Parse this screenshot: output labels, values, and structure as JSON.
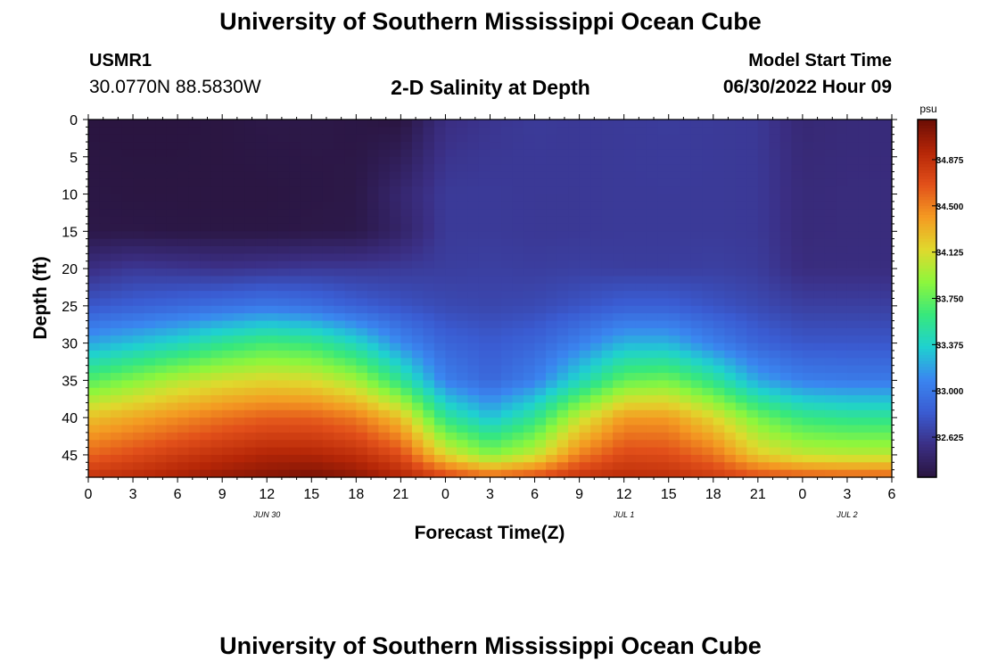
{
  "header": {
    "title": "University of Southern Mississippi Ocean Cube",
    "station_id": "USMR1",
    "station_coords": "30.0770N  88.5830W",
    "subtitle": "2-D Salinity at Depth",
    "start_label": "Model Start Time",
    "start_value": "06/30/2022 Hour 09"
  },
  "footer": {
    "title": "University of Southern Mississippi Ocean Cube"
  },
  "chart_data": {
    "type": "heatmap",
    "title": "2-D Salinity at Depth",
    "xlabel": "Forecast Time(Z)",
    "ylabel": "Depth (ft)",
    "x_ticks": [
      "0",
      "3",
      "6",
      "9",
      "12",
      "15",
      "18",
      "21",
      "0",
      "3",
      "6",
      "9",
      "12",
      "15",
      "18",
      "21",
      "0",
      "3",
      "6"
    ],
    "x_tick_hours": [
      0,
      3,
      6,
      9,
      12,
      15,
      18,
      21,
      24,
      27,
      30,
      33,
      36,
      39,
      42,
      45,
      48,
      51,
      54
    ],
    "date_labels": [
      {
        "label": "JUN 30",
        "hour": 12
      },
      {
        "label": "JUL 1",
        "hour": 36
      },
      {
        "label": "JUL 2",
        "hour": 51
      }
    ],
    "xlim": [
      0,
      54
    ],
    "y_ticks": [
      0,
      5,
      10,
      15,
      20,
      25,
      30,
      35,
      40,
      45
    ],
    "ylim": [
      0,
      48
    ],
    "colorbar": {
      "unit": "psu",
      "ticks": [
        "34.875",
        "34.500",
        "34.125",
        "33.750",
        "33.375",
        "33.000",
        "32.625"
      ],
      "tick_values": [
        34.875,
        34.5,
        34.125,
        33.75,
        33.375,
        33.0,
        32.625
      ],
      "range": [
        32.3,
        35.2
      ],
      "colors": [
        "#2a1540",
        "#3b2f85",
        "#3a5cd2",
        "#3a86f0",
        "#1fd1d0",
        "#37e87c",
        "#8ef63c",
        "#e0d92d",
        "#f49a22",
        "#e2501a",
        "#b52607",
        "#6a0d05"
      ]
    },
    "series": [
      {
        "depth_ft": 0,
        "salinity": [
          32.3,
          32.3,
          32.3,
          32.31,
          32.33,
          32.33,
          32.32,
          32.3,
          32.55,
          32.6,
          32.63,
          32.62,
          32.63,
          32.64,
          32.63,
          32.62,
          32.5,
          32.52,
          32.52
        ]
      },
      {
        "depth_ft": 10,
        "salinity": [
          32.32,
          32.31,
          32.31,
          32.31,
          32.31,
          32.32,
          32.33,
          32.48,
          32.63,
          32.63,
          32.62,
          32.62,
          32.63,
          32.63,
          32.63,
          32.62,
          32.52,
          32.53,
          32.53
        ]
      },
      {
        "depth_ft": 15,
        "salinity": [
          32.33,
          32.33,
          32.32,
          32.32,
          32.32,
          32.33,
          32.34,
          32.45,
          32.63,
          32.63,
          32.62,
          32.62,
          32.63,
          32.63,
          32.63,
          32.62,
          32.52,
          32.53,
          32.53
        ]
      },
      {
        "depth_ft": 20,
        "salinity": [
          32.55,
          32.62,
          32.6,
          32.58,
          32.6,
          32.62,
          32.62,
          32.63,
          32.65,
          32.66,
          32.65,
          32.66,
          32.65,
          32.65,
          32.66,
          32.64,
          32.54,
          32.54,
          32.54
        ]
      },
      {
        "depth_ft": 25,
        "salinity": [
          32.8,
          32.85,
          32.9,
          32.95,
          33.0,
          32.95,
          32.85,
          32.78,
          32.72,
          32.7,
          32.72,
          32.78,
          32.85,
          32.85,
          32.78,
          32.72,
          32.66,
          32.66,
          32.66
        ]
      },
      {
        "depth_ft": 30,
        "salinity": [
          33.2,
          33.3,
          33.4,
          33.55,
          33.65,
          33.6,
          33.4,
          33.1,
          32.88,
          32.82,
          32.88,
          33.05,
          33.25,
          33.25,
          33.05,
          32.88,
          32.8,
          32.8,
          32.8
        ]
      },
      {
        "depth_ft": 35,
        "salinity": [
          33.7,
          33.85,
          34.0,
          34.1,
          34.15,
          34.12,
          33.95,
          33.55,
          33.05,
          32.9,
          33.05,
          33.4,
          33.75,
          33.8,
          33.55,
          33.2,
          33.05,
          33.02,
          33.02
        ]
      },
      {
        "depth_ft": 40,
        "salinity": [
          34.25,
          34.35,
          34.45,
          34.55,
          34.62,
          34.62,
          34.52,
          34.25,
          33.55,
          33.3,
          33.55,
          34.05,
          34.4,
          34.4,
          34.15,
          33.8,
          33.6,
          33.55,
          33.55
        ]
      },
      {
        "depth_ft": 45,
        "salinity": [
          34.6,
          34.7,
          34.8,
          34.88,
          34.95,
          34.95,
          34.88,
          34.7,
          34.15,
          33.85,
          34.05,
          34.5,
          34.72,
          34.7,
          34.55,
          34.2,
          34.05,
          34.02,
          34.02
        ]
      },
      {
        "depth_ft": 48,
        "salinity": [
          34.85,
          34.9,
          34.98,
          35.05,
          35.1,
          35.15,
          35.08,
          34.95,
          34.75,
          34.6,
          34.7,
          34.85,
          34.9,
          34.88,
          34.8,
          34.7,
          34.65,
          34.62,
          34.62
        ]
      }
    ]
  }
}
